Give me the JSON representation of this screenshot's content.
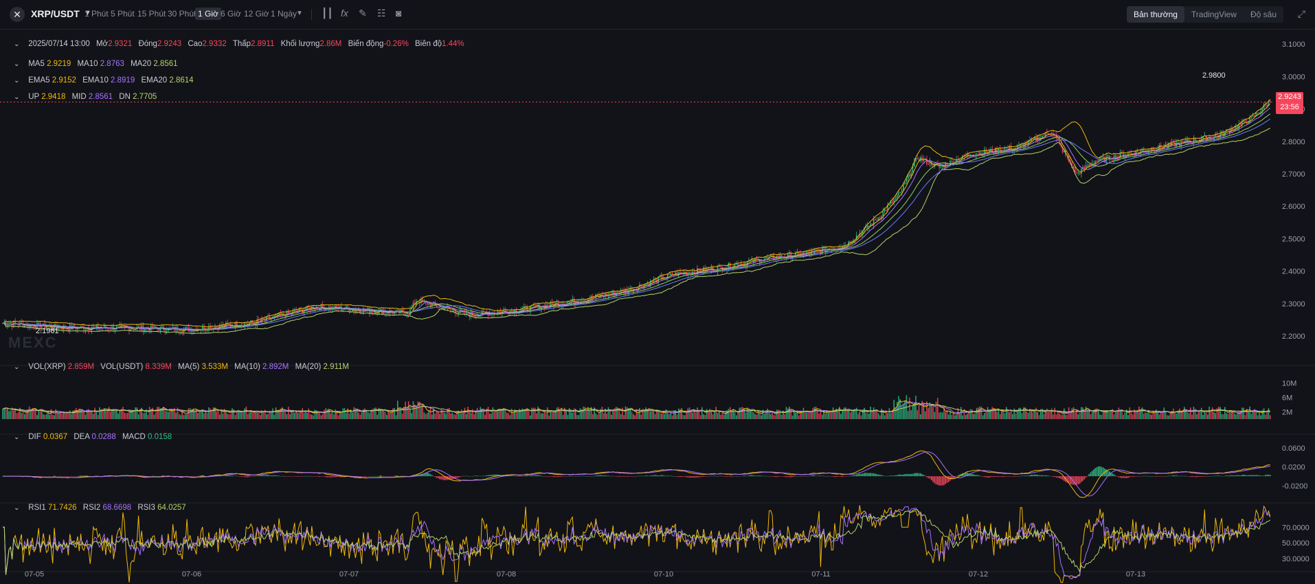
{
  "header": {
    "pair": "XRP/USDT",
    "intervals": [
      "1 Phút",
      "5 Phút",
      "15 Phút",
      "30 Phút",
      "1 Giờ",
      "6 Giờ",
      "12 Giờ",
      "1 Ngày"
    ],
    "active_interval": "1 Giờ",
    "views": [
      "Bản thường",
      "TradingView",
      "Độ sâu"
    ],
    "active_view": "Bản thường"
  },
  "ohlc": {
    "date": "2025/07/14 13:00",
    "open_label": "Mở",
    "open": "2.9321",
    "close_label": "Đóng",
    "close": "2.9243",
    "high_label": "Cao",
    "high": "2.9332",
    "low_label": "Thấp",
    "low": "2.8911",
    "volume_label": "Khối lượng",
    "volume": "2.86M",
    "change_label": "Biến động",
    "change": "-0.26%",
    "amplitude_label": "Biên độ",
    "amplitude": "1.44%"
  },
  "ma": {
    "ma5_label": "MA5",
    "ma5": "2.9219",
    "ma10_label": "MA10",
    "ma10": "2.8763",
    "ma20_label": "MA20",
    "ma20": "2.8561"
  },
  "ema": {
    "ema5_label": "EMA5",
    "ema5": "2.9152",
    "ema10_label": "EMA10",
    "ema10": "2.8919",
    "ema20_label": "EMA20",
    "ema20": "2.8614"
  },
  "boll": {
    "up_label": "UP",
    "up": "2.9418",
    "mid_label": "MID",
    "mid": "2.8561",
    "dn_label": "DN",
    "dn": "2.7705"
  },
  "vol": {
    "vol_xrp_label": "VOL(XRP)",
    "vol_xrp": "2.859M",
    "vol_usdt_label": "VOL(USDT)",
    "vol_usdt": "8.339M",
    "ma5_label": "MA(5)",
    "ma5": "3.533M",
    "ma10_label": "MA(10)",
    "ma10": "2.892M",
    "ma20_label": "MA(20)",
    "ma20": "2.911M"
  },
  "macd": {
    "dif_label": "DIF",
    "dif": "0.0367",
    "dea_label": "DEA",
    "dea": "0.0288",
    "macd_label": "MACD",
    "macd": "0.0158"
  },
  "rsi": {
    "rsi1_label": "RSI1",
    "rsi1": "71.7426",
    "rsi2_label": "RSI2",
    "rsi2": "68.6698",
    "rsi3_label": "RSI3",
    "rsi3": "64.0257"
  },
  "watermark": "MEXC",
  "price_tag": {
    "price": "2.9243",
    "countdown": "23:56"
  },
  "marks": {
    "high": "2.9800",
    "low": "2.1961"
  },
  "colors": {
    "up": "#2ebd85",
    "down": "#f6465d",
    "background": "#121318"
  },
  "chart_data": {
    "type": "candlestick",
    "x_ticks": [
      "07-05",
      "07-06",
      "07-07",
      "07-08",
      "07-10",
      "07-11",
      "07-12",
      "07-13"
    ],
    "price_axis": {
      "ticks": [
        "3.1000",
        "3.0000",
        "2.9000",
        "2.8000",
        "2.7000",
        "2.6000",
        "2.5000",
        "2.4000",
        "2.3000",
        "2.2000"
      ],
      "range": [
        2.13,
        3.13
      ]
    },
    "volume_axis": {
      "ticks": [
        "10M",
        "6M",
        "2M"
      ],
      "range": [
        0,
        13
      ]
    },
    "macd_axis": {
      "ticks": [
        "0.0600",
        "0.0200",
        "-0.0200"
      ],
      "range": [
        -0.035,
        0.075
      ]
    },
    "rsi_axis": {
      "ticks": [
        "70.0000",
        "50.0000",
        "30.0000"
      ],
      "range": [
        18,
        92
      ]
    },
    "price_path_anchors": [
      [
        0,
        2.24
      ],
      [
        40,
        2.225
      ],
      [
        80,
        2.225
      ],
      [
        120,
        2.22
      ],
      [
        160,
        2.24
      ],
      [
        200,
        2.29
      ],
      [
        230,
        2.28
      ],
      [
        260,
        2.27
      ],
      [
        265,
        2.31
      ],
      [
        280,
        2.29
      ],
      [
        300,
        2.265
      ],
      [
        330,
        2.28
      ],
      [
        370,
        2.31
      ],
      [
        400,
        2.34
      ],
      [
        430,
        2.39
      ],
      [
        460,
        2.41
      ],
      [
        490,
        2.44
      ],
      [
        510,
        2.45
      ],
      [
        540,
        2.48
      ],
      [
        560,
        2.56
      ],
      [
        575,
        2.64
      ],
      [
        586,
        2.75
      ],
      [
        600,
        2.72
      ],
      [
        620,
        2.76
      ],
      [
        650,
        2.78
      ],
      [
        672,
        2.83
      ],
      [
        688,
        2.7
      ],
      [
        700,
        2.74
      ],
      [
        730,
        2.77
      ],
      [
        760,
        2.8
      ],
      [
        780,
        2.82
      ],
      [
        800,
        2.87
      ],
      [
        812,
        2.924
      ]
    ]
  }
}
